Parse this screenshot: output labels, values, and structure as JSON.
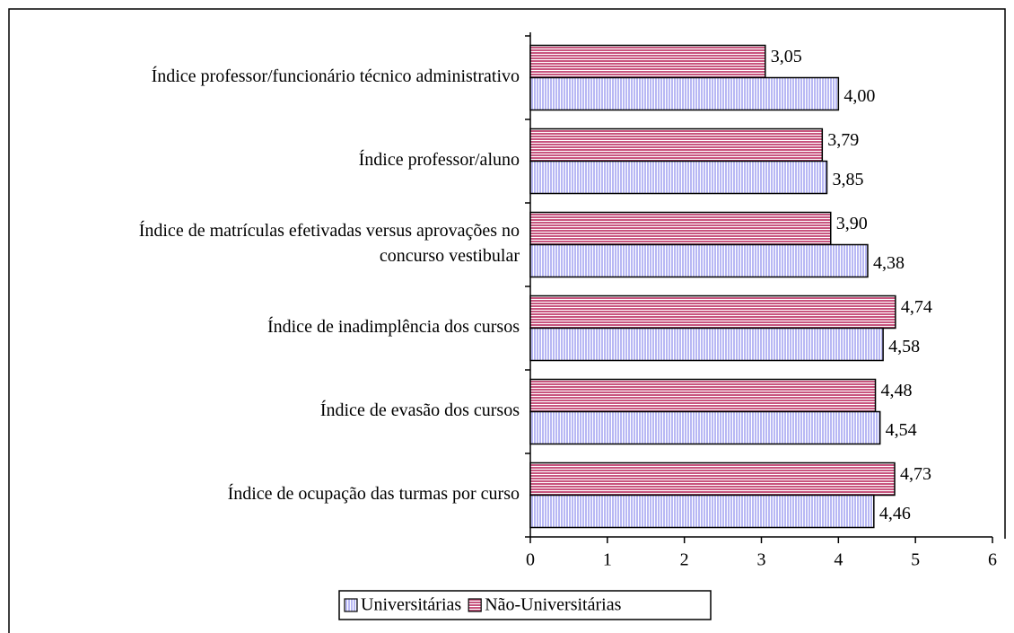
{
  "chart_data": {
    "type": "bar",
    "orientation": "horizontal",
    "categories": [
      [
        "Índice professor/funcionário técnico administrativo"
      ],
      [
        "Índice professor/aluno"
      ],
      [
        "Índice de matrículas efetivadas versus aprovações no",
        "concurso vestibular"
      ],
      [
        "Índice de inadimplência dos cursos"
      ],
      [
        "Índice de evasão dos cursos"
      ],
      [
        "Índice de ocupação das turmas por curso"
      ]
    ],
    "series": [
      {
        "name": "Universitárias",
        "color": "#b8b8f4",
        "values": [
          4.0,
          3.85,
          4.38,
          4.58,
          4.54,
          4.46
        ],
        "value_labels": [
          "4,00",
          "3,85",
          "4,38",
          "4,58",
          "4,54",
          "4,46"
        ]
      },
      {
        "name": "Não-Universitárias",
        "color": "#c8557f",
        "values": [
          3.05,
          3.79,
          3.9,
          4.74,
          4.48,
          4.73
        ],
        "value_labels": [
          "3,05",
          "3,79",
          "3,90",
          "4,74",
          "4,48",
          "4,73"
        ]
      }
    ],
    "xlim": [
      0,
      6
    ],
    "xticks": [
      0,
      1,
      2,
      3,
      4,
      5,
      6
    ],
    "legend": "bottom"
  }
}
